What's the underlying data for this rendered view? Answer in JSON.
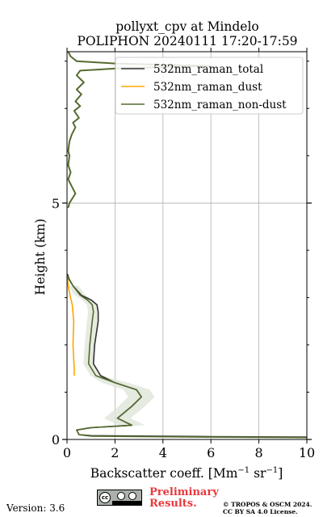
{
  "chart_data": {
    "type": "line",
    "title": [
      "pollyxt_cpv at Mindelo",
      "POLIPHON 20240111 17:20-17:59"
    ],
    "xlabel": "Backscatter coeff. [Mm",
    "xlabel_sup1": "−1",
    "xlabel_mid": " sr",
    "xlabel_sup2": "−1",
    "xlabel_end": "]",
    "ylabel": "Height (km)",
    "xlim": [
      0,
      10
    ],
    "ylim": [
      0,
      8.2
    ],
    "xticks": [
      0,
      2,
      4,
      6,
      8,
      10
    ],
    "xtick_labels": [
      "0",
      "2",
      "4",
      "6",
      "8",
      "10"
    ],
    "yticks": [
      0,
      5
    ],
    "ytick_labels": [
      "0",
      "5"
    ],
    "y_minor_ticks": [
      1,
      2,
      3,
      4,
      6,
      7,
      8
    ],
    "grid": true,
    "legend_position": "top-right",
    "legend": [
      "532nm_raman_total",
      "532nm_raman_dust",
      "532nm_raman_non-dust"
    ],
    "colors": {
      "total": "#333333",
      "dust": "#ffa500",
      "non_dust": "#556b2f",
      "band": "#dfe6d8"
    },
    "series": [
      {
        "name": "532nm_raman_total",
        "points": [
          [
            10,
            0.05
          ],
          [
            6,
            0.06
          ],
          [
            1,
            0.08
          ],
          [
            0.5,
            0.1
          ],
          [
            0.4,
            0.2
          ],
          [
            1.0,
            0.25
          ],
          [
            2.7,
            0.3
          ],
          [
            2.1,
            0.45
          ],
          [
            2.7,
            0.7
          ],
          [
            3.1,
            0.9
          ],
          [
            2.9,
            1.05
          ],
          [
            2.0,
            1.2
          ],
          [
            1.4,
            1.35
          ],
          [
            1.1,
            1.6
          ],
          [
            1.15,
            2.0
          ],
          [
            1.3,
            2.5
          ],
          [
            1.3,
            2.7
          ],
          [
            1.25,
            2.85
          ],
          [
            1.0,
            2.95
          ],
          [
            0.6,
            3.05
          ],
          [
            0.25,
            3.25
          ],
          [
            0.08,
            3.4
          ],
          [
            0.02,
            3.5
          ]
        ]
      },
      {
        "name": "532nm_raman_dust",
        "points": [
          [
            0.3,
            1.35
          ],
          [
            0.3,
            1.5
          ],
          [
            0.25,
            2.0
          ],
          [
            0.28,
            2.5
          ],
          [
            0.22,
            2.85
          ],
          [
            0.12,
            3.05
          ],
          [
            0.05,
            3.25
          ],
          [
            0.02,
            3.4
          ]
        ]
      },
      {
        "name": "532nm_raman_non-dust",
        "points": [
          [
            10,
            0.04
          ],
          [
            6,
            0.05
          ],
          [
            1,
            0.07
          ],
          [
            0.5,
            0.1
          ],
          [
            0.4,
            0.2
          ],
          [
            1.0,
            0.25
          ],
          [
            2.7,
            0.3
          ],
          [
            2.1,
            0.45
          ],
          [
            2.7,
            0.7
          ],
          [
            3.1,
            0.9
          ],
          [
            2.9,
            1.05
          ],
          [
            2.0,
            1.2
          ],
          [
            1.2,
            1.35
          ],
          [
            0.9,
            1.6
          ],
          [
            0.95,
            2.0
          ],
          [
            1.05,
            2.5
          ],
          [
            1.1,
            2.7
          ],
          [
            1.05,
            2.85
          ],
          [
            0.85,
            2.95
          ],
          [
            0.55,
            3.05
          ],
          [
            0.25,
            3.25
          ],
          [
            0.06,
            3.4
          ],
          [
            0.01,
            3.5
          ]
        ]
      },
      {
        "name": "upper_layer_signal",
        "points": [
          [
            0.05,
            4.9
          ],
          [
            0.1,
            5.0
          ],
          [
            0.35,
            5.2
          ],
          [
            0.2,
            5.35
          ],
          [
            0.05,
            5.5
          ],
          [
            0.15,
            5.65
          ],
          [
            0.05,
            5.8
          ],
          [
            0.1,
            6.0
          ],
          [
            0.05,
            6.1
          ],
          [
            0.1,
            6.3
          ],
          [
            0.2,
            6.45
          ],
          [
            0.35,
            6.6
          ],
          [
            0.25,
            6.7
          ],
          [
            0.5,
            6.8
          ],
          [
            0.3,
            6.95
          ],
          [
            0.55,
            7.05
          ],
          [
            0.35,
            7.15
          ],
          [
            0.6,
            7.3
          ],
          [
            0.4,
            7.4
          ],
          [
            0.7,
            7.55
          ],
          [
            0.4,
            7.7
          ],
          [
            0.55,
            7.8
          ],
          [
            2.2,
            7.85
          ],
          [
            6.0,
            7.9
          ],
          [
            2.0,
            7.95
          ],
          [
            0.4,
            8.0
          ],
          [
            0.15,
            8.1
          ],
          [
            0.05,
            8.2
          ]
        ]
      }
    ]
  },
  "footer": {
    "version": "Version: 3.6",
    "preliminary": "Preliminary Results.",
    "copyright": "© TROPOS & OSCM 2024. CC BY SA 4.0 License.",
    "license_badge": "cc-by-sa-icon"
  }
}
